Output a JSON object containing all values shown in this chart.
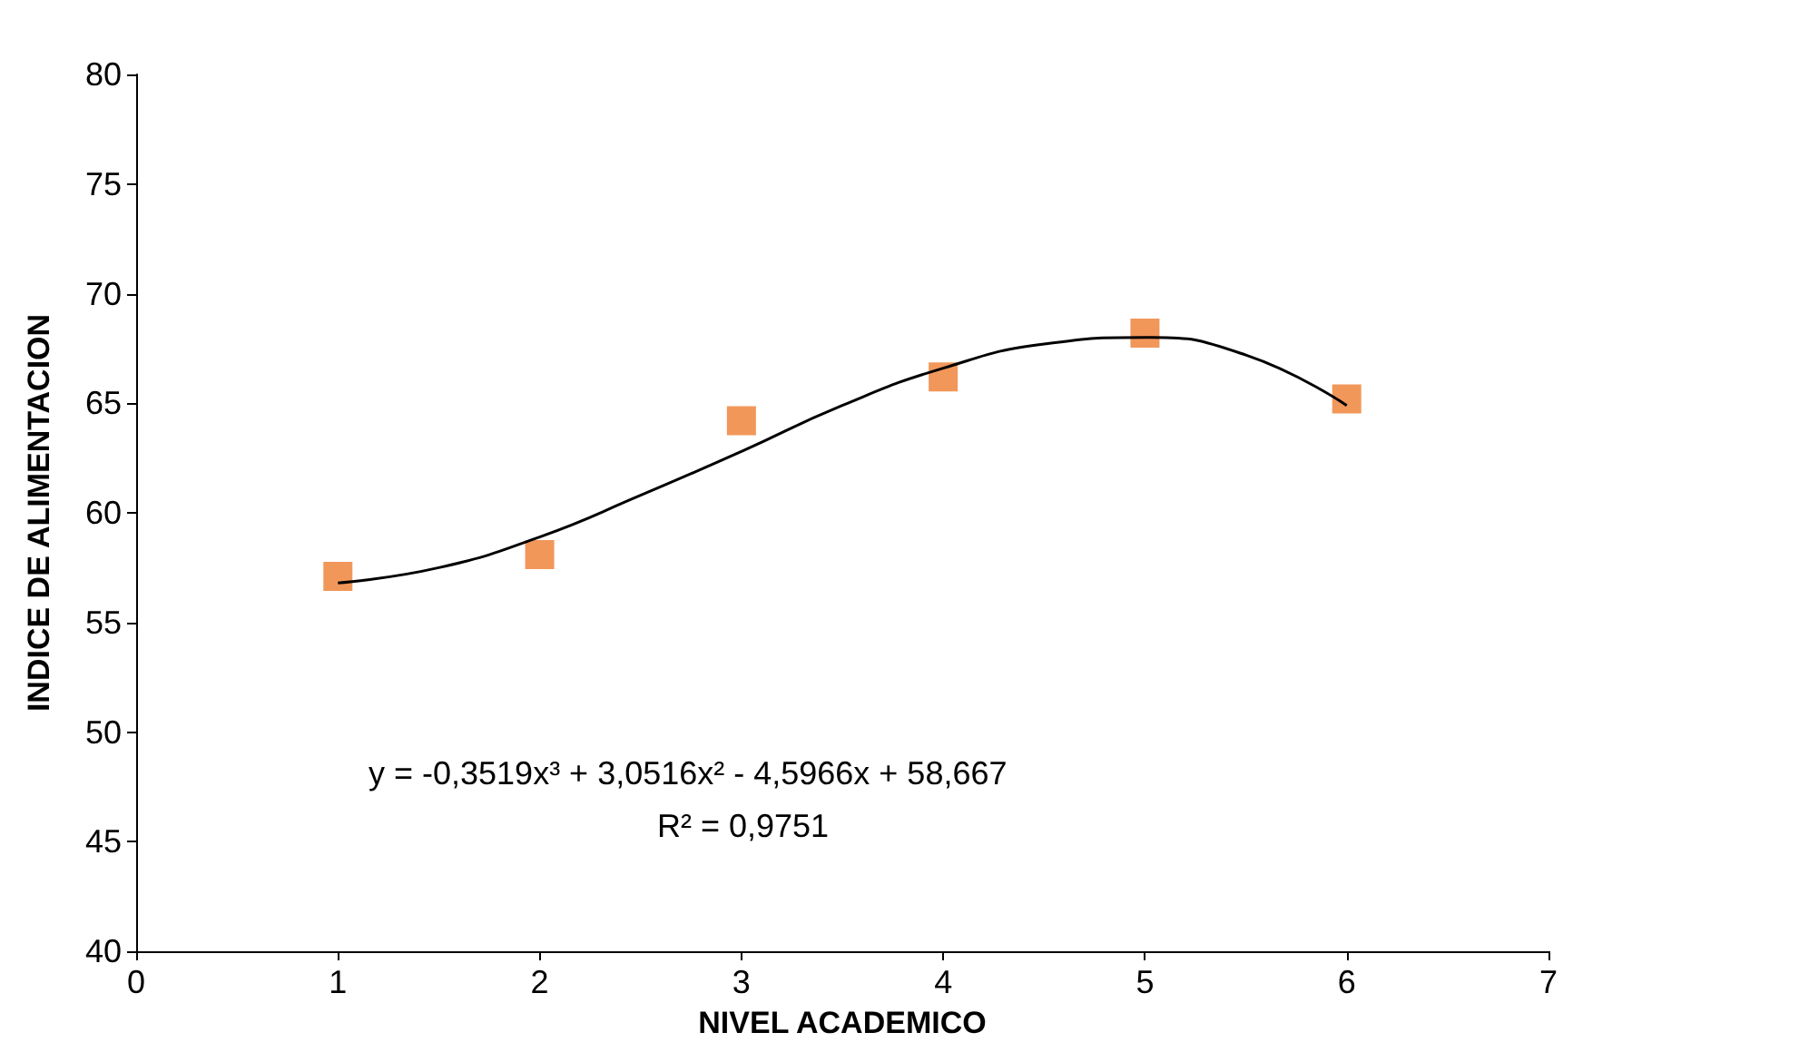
{
  "chart_data": {
    "type": "scatter",
    "xlabel": "NIVEL ACADEMICO",
    "ylabel": "INDICE DE ALIMENTACION",
    "x": [
      1,
      2,
      3,
      4,
      5,
      6
    ],
    "series": [
      {
        "color": "#ed7d31",
        "values": [
          57.1,
          58.1,
          64.2,
          66.2,
          68.2,
          65.2
        ],
        "marker": "square"
      },
      {
        "type": "line",
        "color": "#000000",
        "x": [
          1,
          1.5,
          2,
          2.5,
          3,
          3.5,
          4,
          4.5,
          5,
          5.5,
          6
        ],
        "values": [
          56.8,
          57.5,
          58.9,
          60.8,
          62.8,
          64.9,
          66.6,
          67.7,
          68.0,
          67.2,
          64.9
        ],
        "marker": "none"
      }
    ],
    "xlim": [
      0,
      7
    ],
    "xticks": [
      0,
      1,
      2,
      3,
      4,
      5,
      6,
      7
    ],
    "ylim": [
      40,
      80
    ],
    "yticks": [
      40,
      45,
      50,
      55,
      60,
      65,
      70,
      75,
      80
    ],
    "grid": false,
    "annotations": [
      "y = -0,3519x³ + 3,0516x² - 4,5966x + 58,667",
      "R² = 0,9751"
    ]
  }
}
